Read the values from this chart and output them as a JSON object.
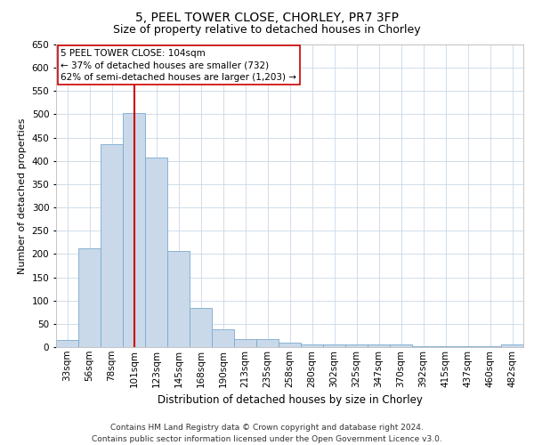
{
  "title1": "5, PEEL TOWER CLOSE, CHORLEY, PR7 3FP",
  "title2": "Size of property relative to detached houses in Chorley",
  "xlabel": "Distribution of detached houses by size in Chorley",
  "ylabel": "Number of detached properties",
  "footer1": "Contains HM Land Registry data © Crown copyright and database right 2024.",
  "footer2": "Contains public sector information licensed under the Open Government Licence v3.0.",
  "bin_labels": [
    "33sqm",
    "56sqm",
    "78sqm",
    "101sqm",
    "123sqm",
    "145sqm",
    "168sqm",
    "190sqm",
    "213sqm",
    "235sqm",
    "258sqm",
    "280sqm",
    "302sqm",
    "325sqm",
    "347sqm",
    "370sqm",
    "392sqm",
    "415sqm",
    "437sqm",
    "460sqm",
    "482sqm"
  ],
  "bar_values": [
    15,
    212,
    435,
    502,
    407,
    207,
    84,
    38,
    18,
    18,
    10,
    5,
    5,
    5,
    5,
    5,
    2,
    2,
    2,
    2,
    5
  ],
  "bar_color": "#c9d9ea",
  "bar_edge_color": "#7aaace",
  "property_label": "5 PEEL TOWER CLOSE: 104sqm",
  "annotation_line1": "← 37% of detached houses are smaller (732)",
  "annotation_line2": "62% of semi-detached houses are larger (1,203) →",
  "vline_color": "#cc0000",
  "vline_x_bin_index": 3,
  "ylim": [
    0,
    650
  ],
  "yticks": [
    0,
    50,
    100,
    150,
    200,
    250,
    300,
    350,
    400,
    450,
    500,
    550,
    600,
    650
  ],
  "background_color": "#ffffff",
  "grid_color": "#c8d8e8",
  "title1_fontsize": 10,
  "title2_fontsize": 9,
  "xlabel_fontsize": 8.5,
  "ylabel_fontsize": 8,
  "tick_fontsize": 7.5,
  "footer_fontsize": 6.5,
  "annot_fontsize": 7.5
}
